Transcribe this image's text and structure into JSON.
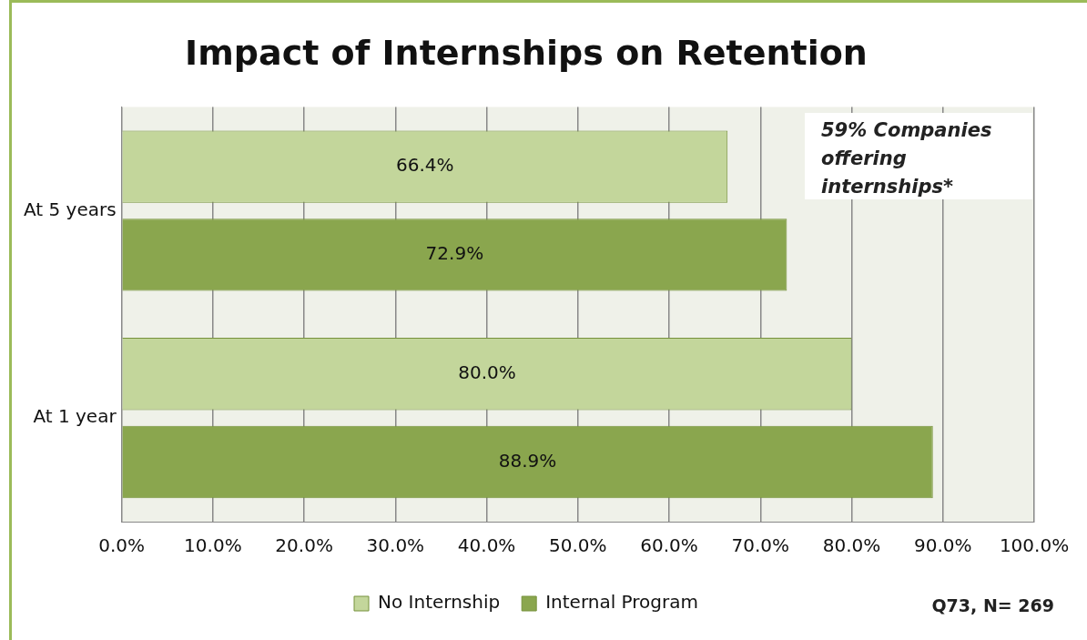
{
  "chart_data": {
    "type": "bar",
    "orientation": "horizontal",
    "title": "Impact of Internships on Retention",
    "categories": [
      "At 5 years",
      "At 1 year"
    ],
    "series": [
      {
        "name": "No Internship",
        "color": "#c3d69b",
        "values": [
          66.4,
          80.0
        ],
        "value_labels": [
          "66.4%",
          "80.0%"
        ]
      },
      {
        "name": "Internal Program",
        "color": "#8aa64e",
        "values": [
          72.9,
          88.9
        ],
        "value_labels": [
          "72.9%",
          "88.9%"
        ]
      }
    ],
    "xlim": [
      0,
      100
    ],
    "xticks": [
      {
        "value": 0,
        "label": "0.0%"
      },
      {
        "value": 10,
        "label": "10.0%"
      },
      {
        "value": 20,
        "label": "20.0%"
      },
      {
        "value": 30,
        "label": "30.0%"
      },
      {
        "value": 40,
        "label": "40.0%"
      },
      {
        "value": 50,
        "label": "50.0%"
      },
      {
        "value": 60,
        "label": "60.0%"
      },
      {
        "value": 70,
        "label": "70.0%"
      },
      {
        "value": 80,
        "label": "80.0%"
      },
      {
        "value": 90,
        "label": "90.0%"
      },
      {
        "value": 100,
        "label": "100.0%"
      }
    ],
    "grid": "x",
    "legend": "bottom",
    "annotations": [
      "59% Companies offering internships*",
      "Q73, N= 269"
    ]
  }
}
